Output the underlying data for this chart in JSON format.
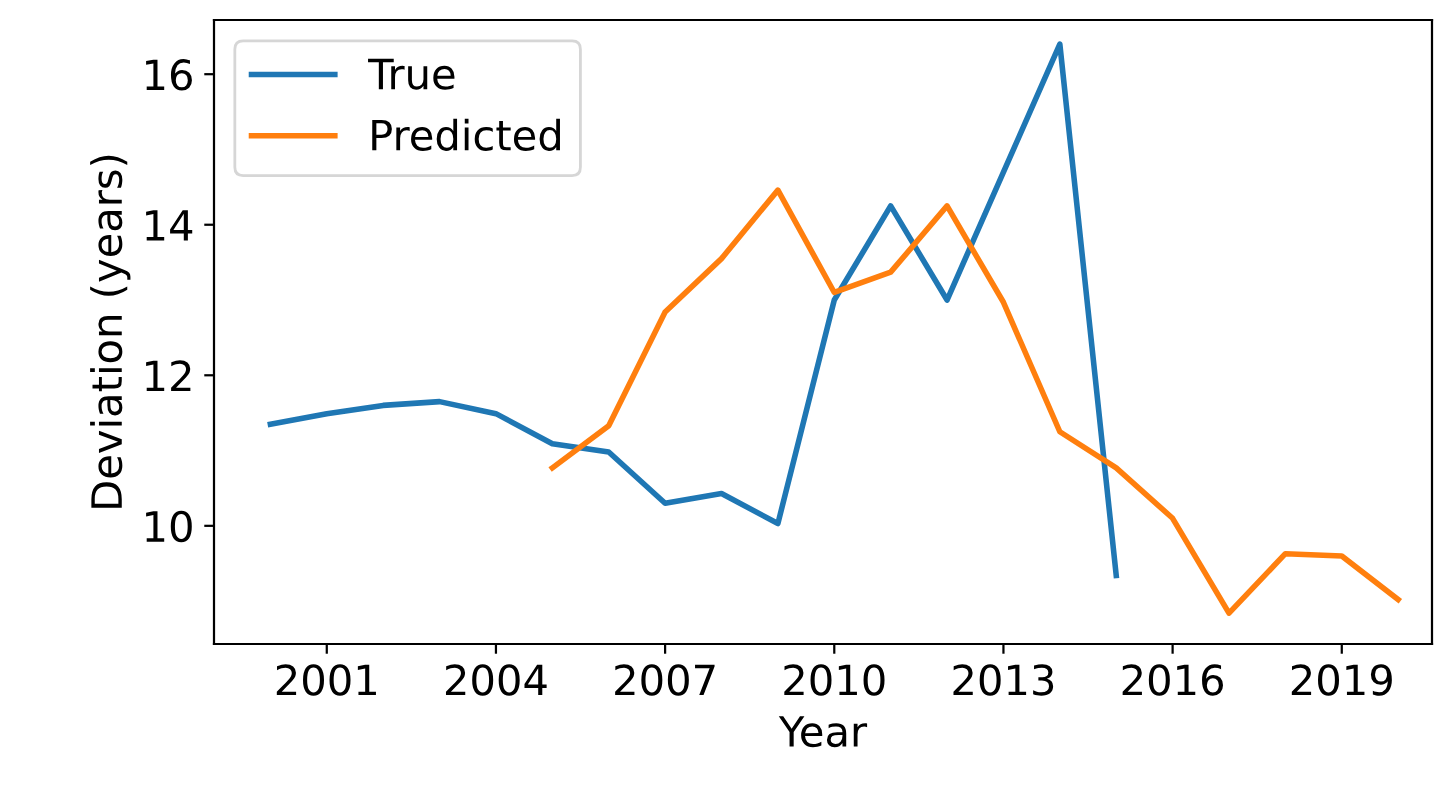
{
  "chart_data": {
    "type": "line",
    "xlabel": "Year",
    "ylabel": "Deviation (years)",
    "series": [
      {
        "name": "True",
        "color": "#1f77b4",
        "x": [
          2000,
          2001,
          2002,
          2003,
          2004,
          2005,
          2006,
          2007,
          2008,
          2009,
          2010,
          2011,
          2012,
          2013,
          2014,
          2015
        ],
        "values": [
          11.35,
          11.49,
          11.6,
          11.65,
          11.49,
          11.09,
          10.98,
          10.3,
          10.43,
          10.03,
          13.0,
          14.25,
          13.0,
          14.7,
          16.4,
          9.34
        ]
      },
      {
        "name": "Predicted",
        "color": "#ff7f0e",
        "x": [
          2005,
          2006,
          2007,
          2008,
          2009,
          2010,
          2011,
          2012,
          2013,
          2014,
          2015,
          2016,
          2017,
          2018,
          2019,
          2020
        ],
        "values": [
          10.77,
          11.33,
          12.84,
          13.55,
          14.46,
          13.1,
          13.37,
          14.25,
          12.97,
          11.25,
          10.77,
          10.1,
          8.84,
          9.63,
          9.6,
          9.02
        ]
      }
    ],
    "xlim": [
      1999,
      2020.6
    ],
    "xticks": [
      2001,
      2004,
      2007,
      2010,
      2013,
      2016,
      2019
    ],
    "ylim": [
      8.43,
      16.72
    ],
    "yticks": [
      10,
      12,
      14,
      16
    ],
    "legend": "upper left",
    "grid": false
  }
}
